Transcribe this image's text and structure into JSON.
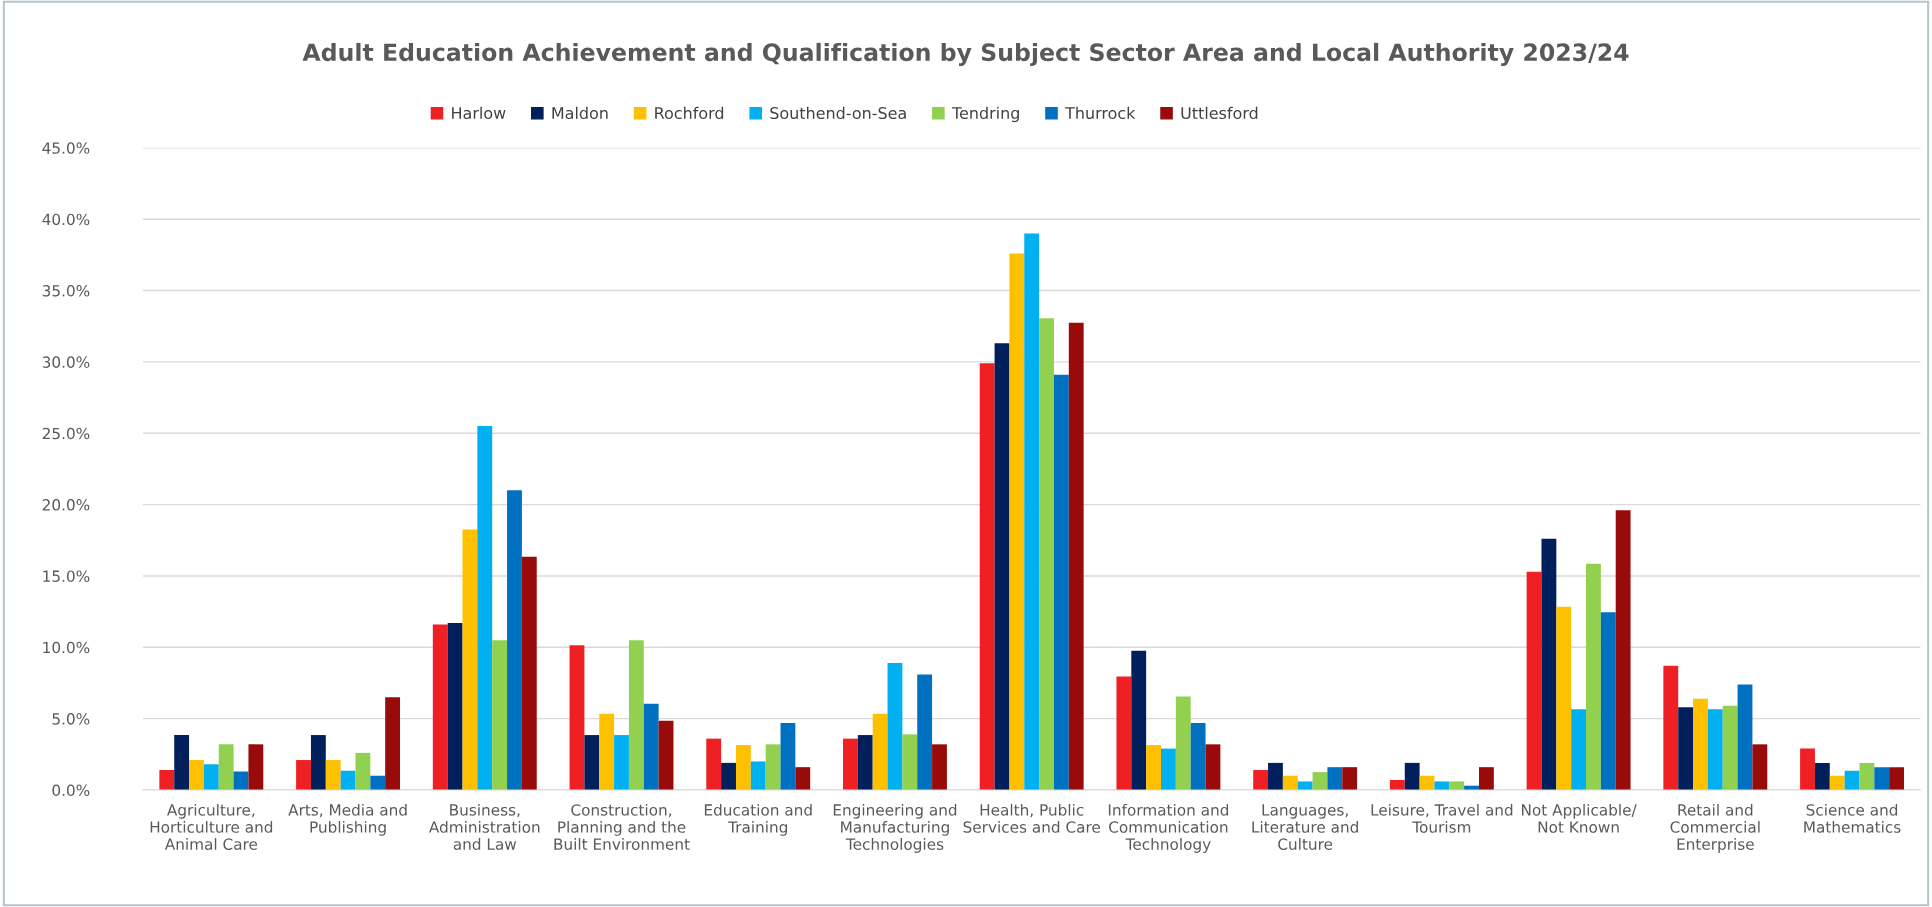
{
  "chart_data": {
    "type": "bar",
    "title": "Adult Education Achievement and Qualification by Subject Sector Area and Local Authority 2023/24",
    "categories": [
      "Agriculture,\nHorticulture and\nAnimal Care",
      "Arts, Media and\nPublishing",
      "Business,\nAdministration\nand Law",
      "Construction,\nPlanning and the\nBuilt Environment",
      "Education and\nTraining",
      "Engineering and\nManufacturing\nTechnologies",
      "Health, Public\nServices and Care",
      "Information and\nCommunication\nTechnology",
      "Languages,\nLiterature and\nCulture",
      "Leisure, Travel and\nTourism",
      "Not Applicable/\nNot Known",
      "Retail and\nCommercial\nEnterprise",
      "Science and\nMathematics"
    ],
    "series": [
      {
        "name": "Harlow",
        "color": "#ee2024",
        "values": [
          1.4,
          2.1,
          11.6,
          10.15,
          3.6,
          3.6,
          29.9,
          7.95,
          1.4,
          0.7,
          15.3,
          8.7,
          2.9
        ]
      },
      {
        "name": "Maldon",
        "color": "#001f5b",
        "values": [
          3.85,
          3.85,
          11.7,
          3.85,
          1.9,
          3.85,
          31.3,
          9.75,
          1.9,
          1.9,
          17.6,
          5.8,
          1.9
        ]
      },
      {
        "name": "Rochford",
        "color": "#ffc000",
        "values": [
          2.1,
          2.1,
          18.25,
          5.35,
          3.15,
          5.35,
          37.6,
          3.15,
          1.0,
          1.0,
          12.85,
          6.4,
          1.0
        ]
      },
      {
        "name": "Southend-on-Sea",
        "color": "#00b0f0",
        "values": [
          1.8,
          1.35,
          25.5,
          3.85,
          2.0,
          8.9,
          39.0,
          2.9,
          0.6,
          0.6,
          5.65,
          5.65,
          1.35
        ]
      },
      {
        "name": "Tendring",
        "color": "#92d050",
        "values": [
          3.2,
          2.6,
          10.5,
          10.5,
          3.2,
          3.9,
          33.05,
          6.55,
          1.25,
          0.6,
          15.85,
          5.9,
          1.9
        ]
      },
      {
        "name": "Thurrock",
        "color": "#0070c0",
        "values": [
          1.3,
          1.0,
          21.0,
          6.05,
          4.7,
          8.1,
          29.1,
          4.7,
          1.6,
          0.3,
          12.45,
          7.4,
          1.6
        ]
      },
      {
        "name": "Uttlesford",
        "color": "#990a0a",
        "values": [
          3.2,
          6.5,
          16.35,
          4.85,
          1.6,
          3.2,
          32.75,
          3.2,
          1.6,
          1.6,
          19.6,
          3.2,
          1.6
        ]
      }
    ],
    "ylim": [
      0,
      45
    ],
    "yticks": [
      {
        "value": 0,
        "label": "0.0%"
      },
      {
        "value": 5,
        "label": "5.0%"
      },
      {
        "value": 10,
        "label": "10.0%"
      },
      {
        "value": 15,
        "label": "15.0%"
      },
      {
        "value": 20,
        "label": "20.0%"
      },
      {
        "value": 25,
        "label": "25.0%"
      },
      {
        "value": 30,
        "label": "30.0%"
      },
      {
        "value": 35,
        "label": "35.0%"
      },
      {
        "value": 40,
        "label": "40.0%"
      },
      {
        "value": 45,
        "label": "45.0%"
      }
    ],
    "grid": "y",
    "legend": "top"
  }
}
